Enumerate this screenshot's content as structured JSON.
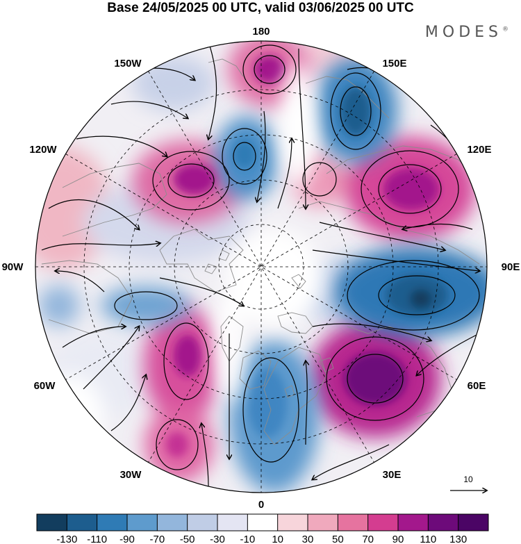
{
  "title": "Base 24/05/2025 00 UTC, valid 03/06/2025 00 UTC",
  "brand": "MODES",
  "brand_mark": "®",
  "longitude_labels": [
    "180",
    "150E",
    "120E",
    "90E",
    "60E",
    "30E",
    "0",
    "30W",
    "60W",
    "90W",
    "120W",
    "150W"
  ],
  "vector_scale": {
    "value": "10"
  },
  "colorbar": {
    "ticks": [
      "-130",
      "-110",
      "-90",
      "-70",
      "-50",
      "-30",
      "-10",
      "10",
      "30",
      "50",
      "70",
      "90",
      "110",
      "130"
    ],
    "colors": [
      "#123d5e",
      "#1d5d8e",
      "#2f7bb5",
      "#5e9bcd",
      "#93b6dc",
      "#c0cde6",
      "#e4e5f3",
      "#ffffff",
      "#f7d5db",
      "#f0a9bd",
      "#e6739f",
      "#d43d90",
      "#a3188c",
      "#6d0a7a",
      "#4b0565"
    ]
  },
  "colors": {
    "land_outline": "#8c8c8c",
    "streamline": "#000000",
    "graticule": "#000000"
  }
}
